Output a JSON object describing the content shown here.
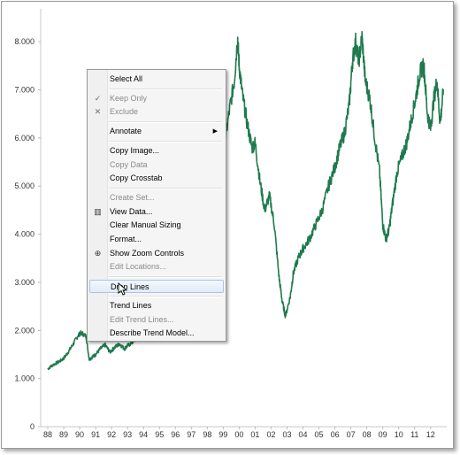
{
  "chart_data": {
    "type": "line",
    "x_ticks": [
      "88",
      "89",
      "90",
      "91",
      "92",
      "93",
      "94",
      "95",
      "96",
      "97",
      "98",
      "99",
      "00",
      "01",
      "02",
      "03",
      "04",
      "05",
      "06",
      "07",
      "08",
      "09",
      "10",
      "11",
      "12"
    ],
    "y_ticks": [
      "0",
      "1.000",
      "2.000",
      "3.000",
      "4.000",
      "5.000",
      "6.000",
      "7.000",
      "8.000"
    ],
    "ylim": [
      0,
      8500
    ],
    "xlim": [
      1988.0,
      2012.9
    ],
    "line_color": "#1f7a4d",
    "series": [
      {
        "x": [
          1988.0,
          1988.3,
          1988.7,
          1989.0,
          1989.3,
          1989.6,
          1989.9,
          1990.1,
          1990.4,
          1990.6,
          1990.8,
          1991.0,
          1991.3,
          1991.6,
          1991.9,
          1992.2,
          1992.5,
          1992.8,
          1993.0,
          1993.3,
          1993.6,
          1993.9,
          1994.0,
          1994.5,
          1995.0,
          1995.5,
          1996.0,
          1996.5,
          1997.0,
          1997.5,
          1997.8,
          1998.0,
          1998.3,
          1998.5,
          1998.7,
          1998.9,
          1999.1,
          1999.4,
          1999.7,
          1999.9,
          2000.0,
          2000.2,
          2000.5,
          2000.8,
          2001.0,
          2001.3,
          2001.6,
          2001.9,
          2002.2,
          2002.5,
          2002.7,
          2002.9,
          2003.2,
          2003.4,
          2003.7,
          2004.0,
          2004.4,
          2004.8,
          2005.2,
          2005.6,
          2006.0,
          2006.3,
          2006.6,
          2006.9,
          2007.1,
          2007.3,
          2007.5,
          2007.7,
          2007.9,
          2008.2,
          2008.5,
          2008.8,
          2009.0,
          2009.2,
          2009.4,
          2009.6,
          2009.9,
          2010.2,
          2010.5,
          2010.8,
          2011.1,
          2011.3,
          2011.5,
          2011.6,
          2011.8,
          2012.0,
          2012.2,
          2012.4,
          2012.6,
          2012.8
        ],
        "y": [
          1200,
          1280,
          1350,
          1420,
          1560,
          1720,
          1900,
          1950,
          1880,
          1400,
          1450,
          1500,
          1620,
          1700,
          1550,
          1650,
          1720,
          1620,
          1680,
          1750,
          1850,
          1950,
          2100,
          2250,
          2400,
          2600,
          2900,
          3300,
          3700,
          4100,
          4400,
          4700,
          5200,
          5600,
          5000,
          5400,
          5900,
          6600,
          7200,
          8100,
          7500,
          6900,
          6300,
          5800,
          5900,
          5100,
          4500,
          4800,
          4200,
          3100,
          2600,
          2300,
          2700,
          3200,
          3500,
          3700,
          3900,
          4200,
          4500,
          5000,
          5400,
          5800,
          6100,
          6700,
          7600,
          8000,
          7600,
          8100,
          7200,
          6800,
          6000,
          5300,
          4200,
          3900,
          4100,
          4600,
          5300,
          5600,
          5900,
          6400,
          6900,
          7300,
          7500,
          7400,
          6500,
          6200,
          6800,
          7200,
          6300,
          7000
        ]
      }
    ]
  },
  "context_menu": {
    "items": [
      {
        "label": "Select All",
        "icon": "",
        "enabled": true
      },
      {
        "sep": true
      },
      {
        "label": "Keep Only",
        "icon": "check-icon",
        "enabled": false
      },
      {
        "label": "Exclude",
        "icon": "x-icon",
        "enabled": false
      },
      {
        "sep": true
      },
      {
        "label": "Annotate",
        "icon": "",
        "enabled": true,
        "submenu": true
      },
      {
        "sep": true
      },
      {
        "label": "Copy Image...",
        "icon": "",
        "enabled": true
      },
      {
        "label": "Copy Data",
        "icon": "",
        "enabled": false
      },
      {
        "label": "Copy Crosstab",
        "icon": "",
        "enabled": true
      },
      {
        "sep": true
      },
      {
        "label": "Create Set...",
        "icon": "",
        "enabled": false
      },
      {
        "label": "View Data...",
        "icon": "table-icon",
        "enabled": true
      },
      {
        "label": "Clear Manual Sizing",
        "icon": "",
        "enabled": true
      },
      {
        "label": "Format...",
        "icon": "",
        "enabled": true
      },
      {
        "label": "Show Zoom Controls",
        "icon": "zoom-icon",
        "enabled": true
      },
      {
        "label": "Edit Locations...",
        "icon": "",
        "enabled": false
      },
      {
        "sep": true
      },
      {
        "label": "Drop Lines",
        "icon": "",
        "enabled": true,
        "hover": true
      },
      {
        "sep": true
      },
      {
        "label": "Trend Lines",
        "icon": "",
        "enabled": true
      },
      {
        "label": "Edit Trend Lines...",
        "icon": "",
        "enabled": false
      },
      {
        "label": "Describe Trend Model...",
        "icon": "",
        "enabled": true
      }
    ]
  }
}
